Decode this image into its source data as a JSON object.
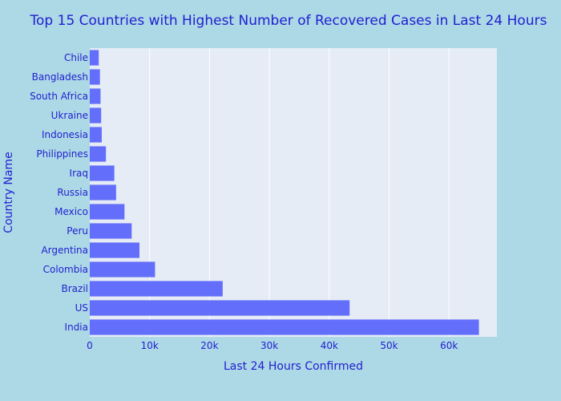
{
  "chart_data": {
    "type": "bar",
    "orientation": "horizontal",
    "title": "Top 15 Countries with Highest Number of Recovered Cases in Last 24 Hours",
    "xlabel": "Last 24 Hours Confirmed",
    "ylabel": "Country Name",
    "categories": [
      "India",
      "US",
      "Brazil",
      "Colombia",
      "Argentina",
      "Peru",
      "Mexico",
      "Russia",
      "Iraq",
      "Philippines",
      "Indonesia",
      "Ukraine",
      "South Africa",
      "Bangladesh",
      "Chile"
    ],
    "values": [
      65000,
      43400,
      22200,
      10900,
      8300,
      7000,
      5800,
      4400,
      4100,
      2700,
      2000,
      1900,
      1800,
      1700,
      1500
    ],
    "xlim": [
      0,
      68000
    ],
    "xticks": [
      0,
      10000,
      20000,
      30000,
      40000,
      50000,
      60000
    ],
    "xtick_labels": [
      "0",
      "10k",
      "20k",
      "30k",
      "40k",
      "50k",
      "60k"
    ],
    "grid": true,
    "colors": {
      "background": "#ADD8E6",
      "plot_background": "#E5ECF6",
      "bar": "#636EFA",
      "text": "#1f1fd0",
      "grid": "#ffffff"
    }
  }
}
